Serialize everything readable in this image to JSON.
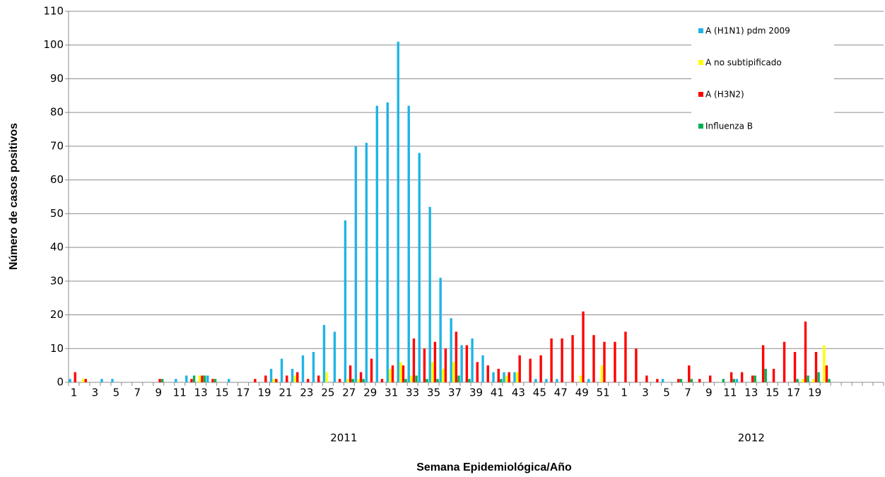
{
  "chart_data": {
    "type": "bar",
    "x_label": "Semana Epidemiológica/Año",
    "y_label": "Número de casos positivos",
    "categories": [
      "1",
      null,
      "3",
      null,
      "5",
      null,
      "7",
      null,
      "9",
      null,
      "11",
      null,
      "13",
      null,
      "15",
      null,
      "17",
      null,
      "19",
      null,
      "21",
      null,
      "23",
      null,
      "25",
      null,
      "27",
      null,
      "29",
      null,
      "31",
      null,
      "33",
      null,
      "35",
      null,
      "37",
      null,
      "39",
      null,
      "41",
      null,
      "43",
      null,
      "45",
      null,
      "47",
      null,
      "49",
      null,
      "51",
      null,
      "1",
      null,
      "3",
      null,
      "5",
      null,
      "7",
      null,
      "9",
      null,
      "11",
      null,
      "13",
      null,
      "15",
      null,
      "17",
      null,
      "19",
      null,
      null,
      null,
      null,
      null,
      null
    ],
    "x_groups": [
      {
        "label": "2011",
        "count": 52
      },
      {
        "label": "2012",
        "count": 25
      }
    ],
    "series": [
      {
        "name": "A (H1N1) pdm 2009",
        "color": "#1fb4e6",
        "values": [
          1,
          0,
          0,
          1,
          1,
          0,
          0,
          0,
          0,
          0,
          1,
          2,
          0,
          2,
          0,
          1,
          0,
          0,
          0,
          4,
          7,
          4,
          8,
          9,
          17,
          15,
          48,
          70,
          71,
          82,
          83,
          101,
          82,
          68,
          52,
          31,
          19,
          11,
          13,
          8,
          3,
          3,
          3,
          0,
          1,
          1,
          1,
          0,
          0,
          1,
          0,
          0,
          0,
          0,
          0,
          0,
          1,
          0,
          0,
          0,
          0,
          0,
          0,
          1,
          0,
          0,
          0,
          0,
          0,
          0,
          0,
          0,
          0,
          0,
          0,
          0,
          0
        ]
      },
      {
        "name": "A no subtipificado",
        "color": "#ffff00",
        "values": [
          0,
          1,
          0,
          0,
          0,
          0,
          0,
          0,
          0,
          0,
          0,
          0,
          2,
          0,
          0,
          0,
          0,
          0,
          0,
          1,
          0,
          2,
          0,
          0,
          3,
          0,
          1,
          1,
          0,
          0,
          4,
          6,
          2,
          0,
          6,
          4,
          6,
          0,
          0,
          0,
          0,
          2,
          3,
          0,
          0,
          0,
          0,
          0,
          2,
          0,
          5,
          0,
          0,
          0,
          0,
          0,
          0,
          0,
          0,
          0,
          0,
          0,
          0,
          0,
          0,
          0,
          0,
          0,
          0,
          1,
          1,
          11,
          0,
          0,
          0,
          0,
          0
        ]
      },
      {
        "name": "A (H3N2)",
        "color": "#ff0000",
        "values": [
          3,
          1,
          0,
          0,
          0,
          0,
          0,
          0,
          1,
          0,
          0,
          1,
          2,
          1,
          0,
          0,
          0,
          1,
          2,
          1,
          2,
          3,
          1,
          2,
          0,
          1,
          5,
          3,
          7,
          1,
          5,
          5,
          13,
          10,
          12,
          10,
          15,
          11,
          6,
          5,
          4,
          3,
          8,
          7,
          8,
          13,
          13,
          14,
          21,
          14,
          12,
          12,
          15,
          10,
          2,
          1,
          0,
          1,
          5,
          1,
          2,
          0,
          3,
          3,
          2,
          11,
          4,
          12,
          9,
          18,
          9,
          5,
          0,
          0,
          0,
          0,
          0
        ]
      },
      {
        "name": "Influenza  B",
        "color": "#00b050",
        "values": [
          0,
          0,
          0,
          0,
          0,
          0,
          0,
          0,
          1,
          0,
          0,
          2,
          2,
          1,
          0,
          0,
          0,
          0,
          0,
          0,
          0,
          0,
          0,
          0,
          0,
          0,
          1,
          1,
          0,
          0,
          0,
          1,
          2,
          1,
          1,
          0,
          2,
          1,
          0,
          0,
          1,
          0,
          0,
          0,
          0,
          0,
          0,
          0,
          0,
          0,
          0,
          0,
          0,
          0,
          0,
          0,
          0,
          1,
          1,
          0,
          0,
          1,
          1,
          0,
          2,
          4,
          0,
          0,
          1,
          2,
          3,
          1,
          0,
          0,
          0,
          0,
          0
        ]
      }
    ],
    "ylim": [
      0,
      110
    ],
    "yticks": [
      0,
      10,
      20,
      30,
      40,
      50,
      60,
      70,
      80,
      90,
      100,
      110
    ],
    "grid": true,
    "legend": "top-right"
  }
}
